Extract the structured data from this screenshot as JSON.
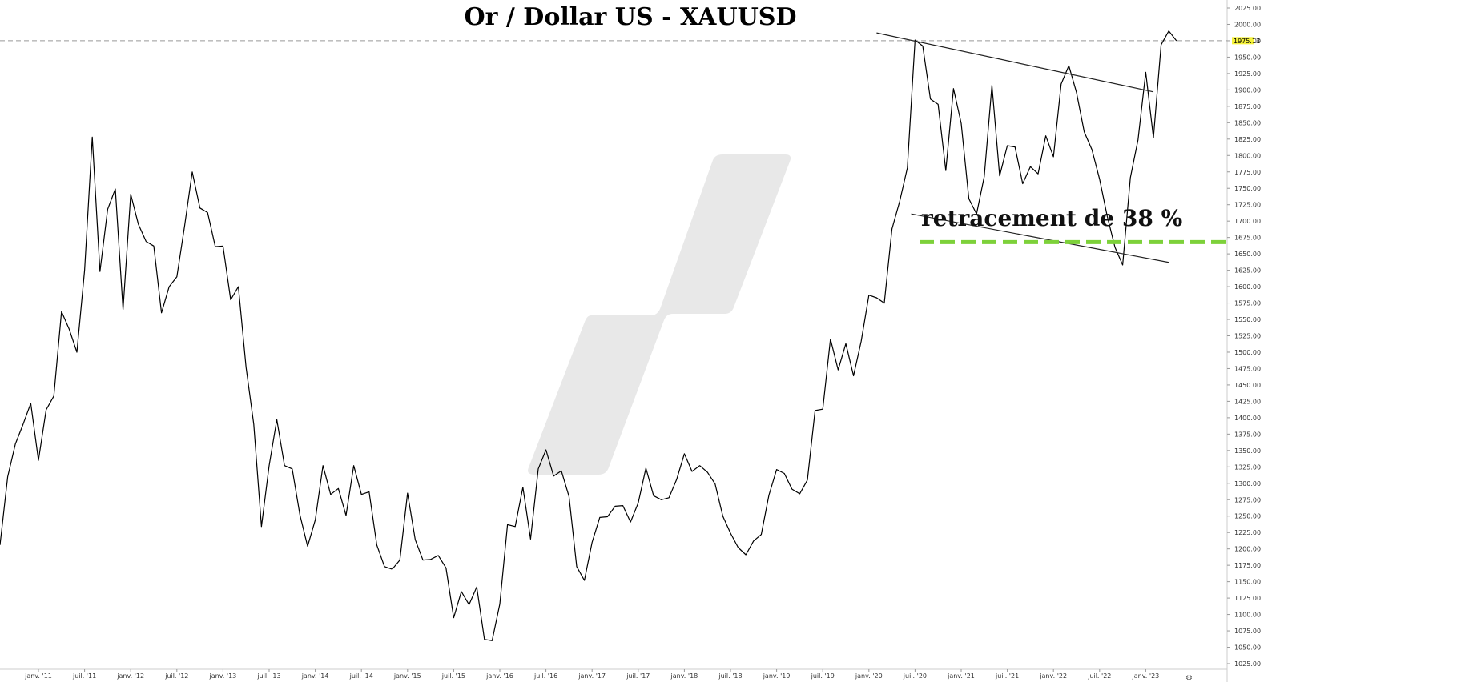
{
  "chart_data": {
    "type": "line",
    "title": "Or / Dollar US - XAUUSD",
    "symbol": "XAUUSD",
    "annotation": "retracement de 38 %",
    "last_price_label": "1975.13",
    "last_price": 1975.13,
    "retracement_level": 1668,
    "ylim": [
      1012,
      2032
    ],
    "y_ticks": [
      1025,
      1050,
      1075,
      1100,
      1125,
      1150,
      1175,
      1200,
      1225,
      1250,
      1275,
      1300,
      1325,
      1350,
      1375,
      1400,
      1425,
      1450,
      1475,
      1500,
      1525,
      1550,
      1575,
      1600,
      1625,
      1650,
      1675,
      1700,
      1725,
      1750,
      1775,
      1800,
      1825,
      1850,
      1875,
      1900,
      1925,
      1950,
      1975,
      2000,
      2025
    ],
    "y_tick_labels": [
      "1025.00",
      "1050.00",
      "1075.00",
      "1100.00",
      "1125.00",
      "1150.00",
      "1175.00",
      "1200.00",
      "1225.00",
      "1250.00",
      "1275.00",
      "1300.00",
      "1325.00",
      "1350.00",
      "1375.00",
      "1400.00",
      "1425.00",
      "1450.00",
      "1475.00",
      "1500.00",
      "1525.00",
      "1550.00",
      "1575.00",
      "1600.00",
      "1625.00",
      "1650.00",
      "1675.00",
      "1700.00",
      "1725.00",
      "1750.00",
      "1775.00",
      "1800.00",
      "1825.00",
      "1850.00",
      "1875.00",
      "1900.00",
      "1925.00",
      "1950.00",
      "1975.00",
      "2000.00",
      "2025.00"
    ],
    "x_tick_labels": [
      "janv. '11",
      "juil. '11",
      "janv. '12",
      "juil. '12",
      "janv. '13",
      "juil. '13",
      "janv. '14",
      "juil. '14",
      "janv. '15",
      "juil. '15",
      "janv. '16",
      "juil. '16",
      "janv. '17",
      "juil. '17",
      "janv. '18",
      "juil. '18",
      "janv. '19",
      "juil. '19",
      "janv. '20",
      "juil. '20",
      "janv. '21",
      "juil. '21",
      "janv. '22",
      "juil. '22",
      "janv. '23"
    ],
    "x_tick_index": [
      0,
      6,
      12,
      18,
      24,
      30,
      36,
      42,
      48,
      54,
      60,
      66,
      72,
      78,
      84,
      90,
      96,
      102,
      108,
      114,
      120,
      126,
      132,
      138,
      144
    ],
    "series": [
      {
        "values": [
          1206,
          1310,
          1360,
          1390,
          1422,
          1335,
          1412,
          1433,
          1562,
          1535,
          1500,
          1625,
          1828,
          1623,
          1718,
          1749,
          1565,
          1741,
          1695,
          1669,
          1662,
          1560,
          1600,
          1615,
          1692,
          1775,
          1720,
          1713,
          1661,
          1662,
          1580,
          1600,
          1477,
          1390,
          1234,
          1327,
          1397,
          1327,
          1322,
          1252,
          1204,
          1244,
          1327,
          1283,
          1292,
          1251,
          1327,
          1283,
          1287,
          1206,
          1173,
          1169,
          1183,
          1285,
          1214,
          1183,
          1184,
          1190,
          1171,
          1095,
          1135,
          1115,
          1142,
          1062,
          1060,
          1116,
          1237,
          1234,
          1294,
          1215,
          1322,
          1351,
          1311,
          1319,
          1280,
          1173,
          1152,
          1210,
          1248,
          1249,
          1265,
          1266,
          1241,
          1270,
          1323,
          1281,
          1275,
          1278,
          1306,
          1345,
          1318,
          1327,
          1317,
          1299,
          1250,
          1224,
          1202,
          1191,
          1212,
          1222,
          1282,
          1321,
          1315,
          1291,
          1284,
          1305,
          1411,
          1413,
          1520,
          1473,
          1513,
          1464,
          1517,
          1587,
          1583,
          1575,
          1688,
          1730,
          1781,
          1976,
          1967,
          1886,
          1878,
          1777,
          1902,
          1849,
          1734,
          1711,
          1768,
          1907,
          1769,
          1815,
          1813,
          1757,
          1783,
          1772,
          1830,
          1798,
          1909,
          1937,
          1896,
          1836,
          1809,
          1764,
          1707,
          1660,
          1633,
          1766,
          1824,
          1927,
          1827,
          1969,
          1990,
          1975
        ]
      }
    ],
    "trendlines": [
      {
        "from": [
          114,
          1987
        ],
        "to": [
          150,
          1897
        ]
      },
      {
        "from": [
          118.5,
          1711
        ],
        "to": [
          152,
          1637
        ]
      }
    ]
  }
}
